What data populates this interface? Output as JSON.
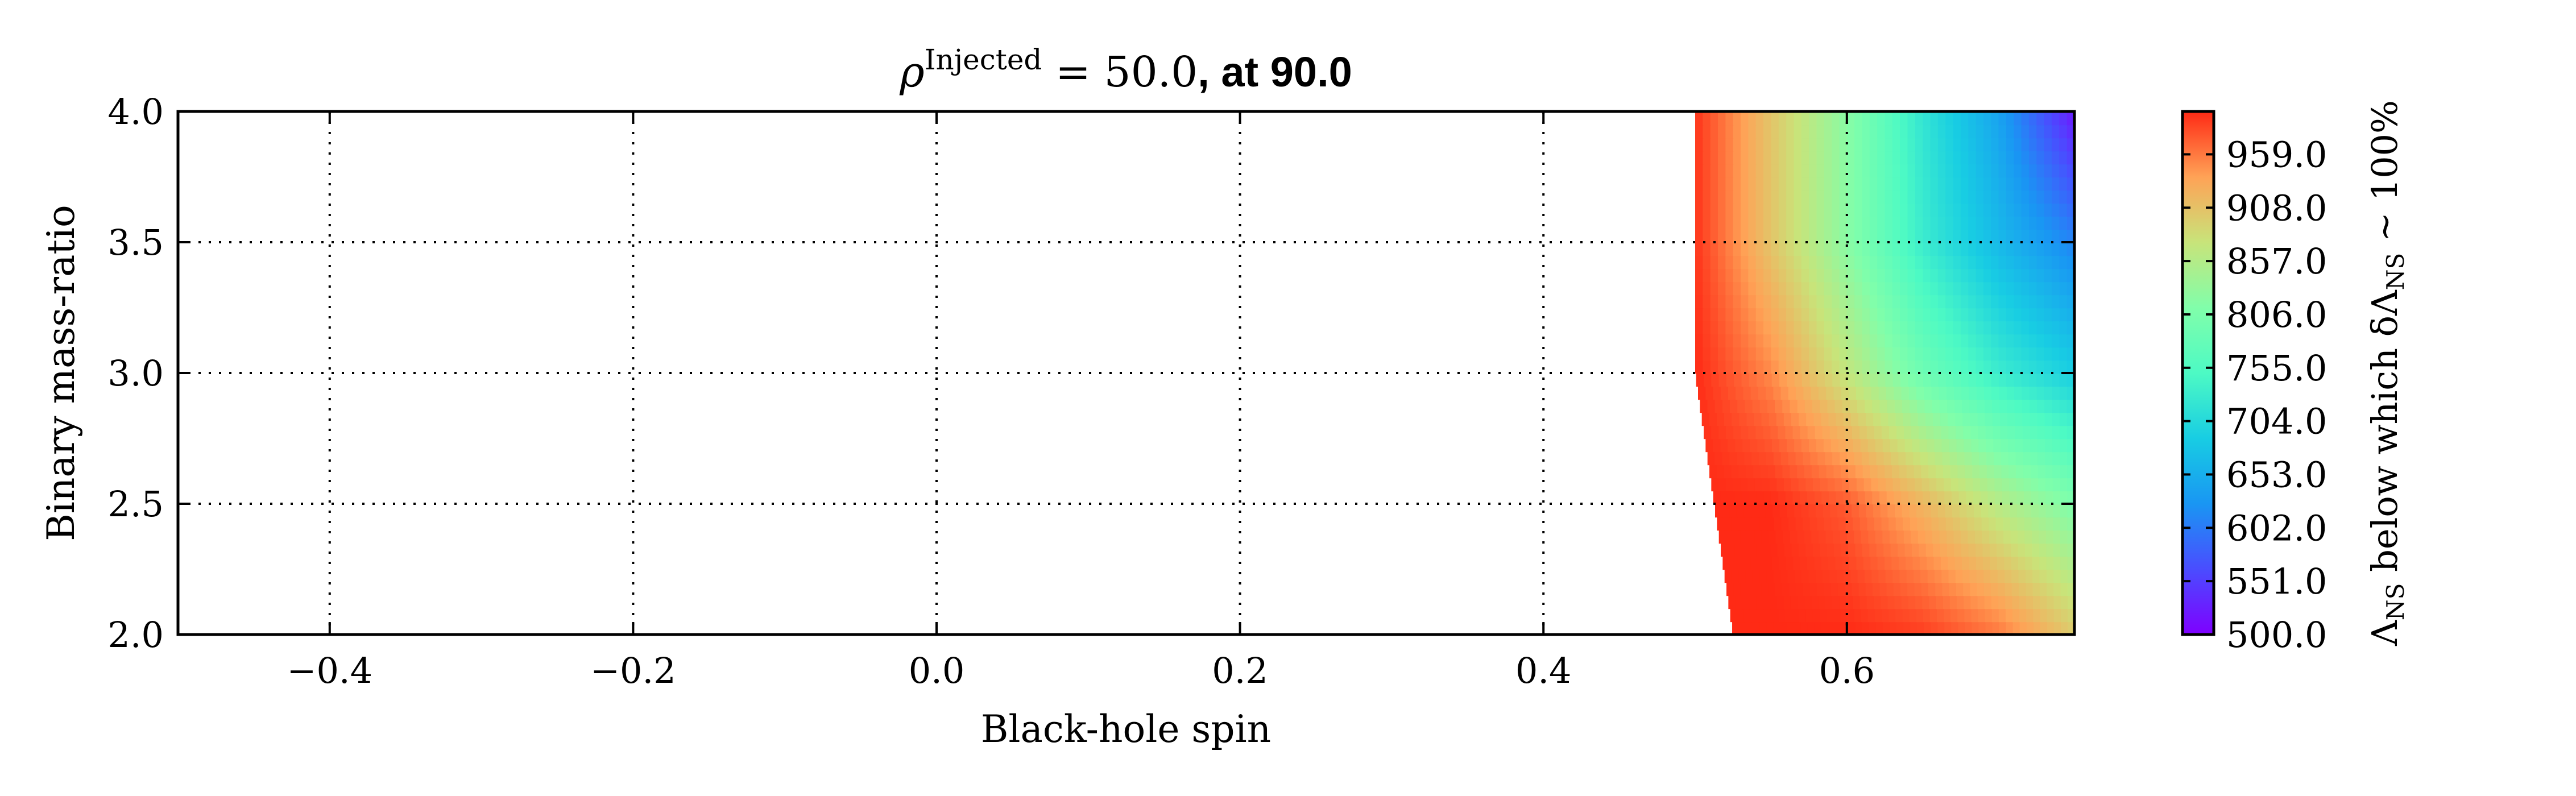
{
  "chart_data": {
    "type": "heatmap",
    "title": {
      "left_math_symbol": "ρ",
      "left_math_sup": "Injected",
      "left_math_rest": " = 50.0",
      "right_text": ", at 90.0"
    },
    "xlabel": "Black-hole spin",
    "ylabel": "Binary mass-ratio",
    "xlim": [
      -0.5,
      0.75
    ],
    "ylim": [
      2.0,
      4.0
    ],
    "xticks": [
      -0.4,
      -0.2,
      0.0,
      0.2,
      0.4,
      0.6
    ],
    "xtick_labels": [
      "−0.4",
      "−0.2",
      "0.0",
      "0.2",
      "0.4",
      "0.6"
    ],
    "yticks": [
      2.0,
      2.5,
      3.0,
      3.5,
      4.0
    ],
    "ytick_labels": [
      "2.0",
      "2.5",
      "3.0",
      "3.5",
      "4.0"
    ],
    "grid": true,
    "colorbar": {
      "range": [
        500.0,
        1000.0
      ],
      "ticks": [
        500.0,
        551.0,
        602.0,
        653.0,
        704.0,
        755.0,
        806.0,
        857.0,
        908.0,
        959.0
      ],
      "tick_labels": [
        "500.0",
        "551.0",
        "602.0",
        "653.0",
        "704.0",
        "755.0",
        "806.0",
        "857.0",
        "908.0",
        "959.0"
      ],
      "label": "Λ_NS below which δΛ_NS ∼ 100%",
      "label_parts": {
        "sym1": "Λ",
        "sub1": "NS",
        "mid": " below which δ",
        "sym2": "Λ",
        "sub2": "NS",
        "tail": " ∼ 100%"
      },
      "colormap": "rainbow"
    },
    "data_region": {
      "x_left_at_y": [
        [
          2.0,
          0.525
        ],
        [
          3.0,
          0.5
        ],
        [
          4.0,
          0.5
        ]
      ],
      "x_right": 0.75
    },
    "field_samples": [
      {
        "y": 4.0,
        "x": [
          0.5,
          0.55,
          0.6,
          0.65,
          0.7,
          0.75
        ],
        "value": [
          995,
          905,
          820,
          720,
          640,
          520
        ]
      },
      {
        "y": 3.5,
        "x": [
          0.5,
          0.55,
          0.6,
          0.65,
          0.7,
          0.75
        ],
        "value": [
          995,
          905,
          820,
          730,
          665,
          610
        ]
      },
      {
        "y": 3.0,
        "x": [
          0.5,
          0.55,
          0.6,
          0.65,
          0.7,
          0.75
        ],
        "value": [
          1000,
          950,
          870,
          790,
          730,
          690
        ]
      },
      {
        "y": 2.5,
        "x": [
          0.5,
          0.55,
          0.6,
          0.65,
          0.7,
          0.75
        ],
        "value": [
          1000,
          1000,
          975,
          920,
          860,
          810
        ]
      },
      {
        "y": 2.0,
        "x": [
          0.5,
          0.55,
          0.6,
          0.65,
          0.7,
          0.75
        ],
        "value": [
          1000,
          1000,
          1000,
          990,
          960,
          900
        ]
      }
    ]
  }
}
